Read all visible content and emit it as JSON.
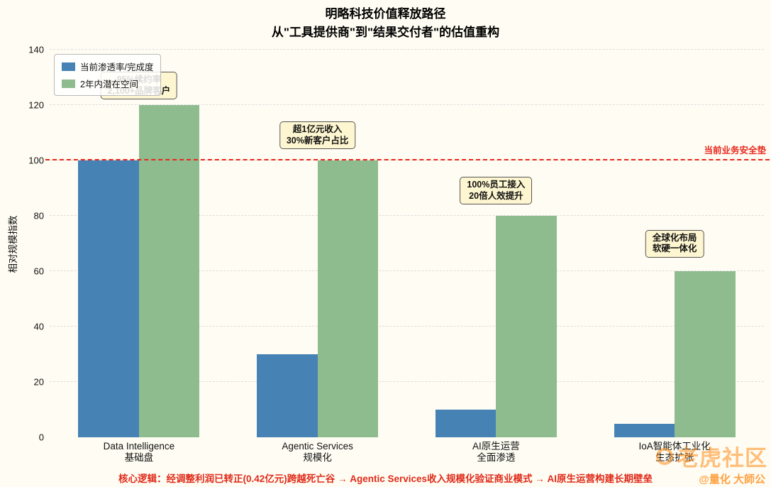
{
  "chart_data": {
    "type": "bar",
    "title": "明略科技价值释放路径",
    "subtitle": "从\"工具提供商\"到\"结果交付者\"的估值重构",
    "xlabel": "",
    "ylabel": "相对规模指数",
    "ylim": [
      0,
      140
    ],
    "yticks": [
      0,
      20,
      40,
      60,
      80,
      100,
      120,
      140
    ],
    "grid": "horizontal-dashed",
    "legend_position": "upper-left",
    "categories": [
      {
        "label": "Data Intelligence",
        "sublabel": "基础盘"
      },
      {
        "label": "Agentic Services",
        "sublabel": "规模化"
      },
      {
        "label": "AI原生运营",
        "sublabel": "全面渗透"
      },
      {
        "label": "IoA智能体工业化",
        "sublabel": "生态扩张"
      }
    ],
    "series": [
      {
        "name": "当前渗透率/完成度",
        "color": "#4682b4",
        "values": [
          100,
          30,
          10,
          5
        ]
      },
      {
        "name": "2年内潜在空间",
        "color": "#8fbc8f",
        "values": [
          120,
          100,
          80,
          60
        ]
      }
    ],
    "reference_line": {
      "value": 100,
      "label": "当前业务安全垫",
      "color": "#e8281e",
      "style": "dashed"
    },
    "annotations": [
      {
        "category_index": 0,
        "y": 122,
        "lines": [
          "95%续约率",
          "2,100+品牌客户"
        ]
      },
      {
        "category_index": 1,
        "y": 104,
        "lines": [
          "超1亿元收入",
          "30%新客户占比"
        ]
      },
      {
        "category_index": 2,
        "y": 84,
        "lines": [
          "100%员工接入",
          "20倍人效提升"
        ]
      },
      {
        "category_index": 3,
        "y": 65,
        "lines": [
          "全球化布局",
          "软硬一体化"
        ]
      }
    ]
  },
  "caption": "核心逻辑：经调整利润已转正(0.42亿元)跨越死亡谷 → Agentic Services收入规模化验证商业模式 → AI原生运营构建长期壁垒",
  "watermark": {
    "primary": "老虎社区",
    "secondary": "@量化 大師公",
    "color": "#ff8a16"
  }
}
